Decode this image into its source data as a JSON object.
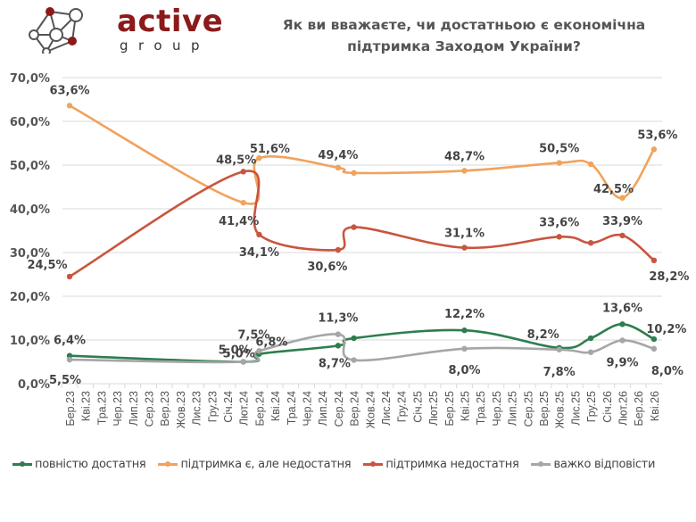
{
  "logo": {
    "word": "active",
    "sub": "group"
  },
  "title": {
    "line1": "Як ви вважаєте, чи достатньою є економічна",
    "line2": "підтримка Заходом України?"
  },
  "chart_data": {
    "type": "line",
    "title": "Як ви вважаєте, чи достатньою є економічна підтримка Заходом України?",
    "xlabel": "",
    "ylabel": "",
    "ylim": [
      0,
      70
    ],
    "y_ticks": [
      "0,0%",
      "10,0%",
      "20,0%",
      "30,0%",
      "40,0%",
      "50,0%",
      "60,0%",
      "70,0%"
    ],
    "grid": true,
    "legend_position": "bottom",
    "categories": [
      "Бер.23",
      "Кві.23",
      "Тра.23",
      "Чер.23",
      "Лип.23",
      "Сер.23",
      "Вер.23",
      "Жов.23",
      "Лис.23",
      "Гру.23",
      "Січ.24",
      "Лют.24",
      "Бер.24",
      "Кві.24",
      "Тра.24",
      "Чер.24",
      "Лип.24",
      "Сер.24",
      "Вер.24",
      "Жов.24",
      "Лис.24",
      "Гру.24",
      "Січ.25",
      "Лют.25",
      "Бер.25",
      "Кві.25",
      "Тра.25",
      "Чер.25",
      "Лип.25",
      "Сер.25",
      "Вер.25",
      "Жов.25",
      "Лис.25",
      "Гру.25",
      "Січ.26",
      "Лют.26",
      "Бер.26",
      "Кві.26"
    ],
    "point_categories": [
      "Бер.23",
      "Лют.24",
      "Бер.24",
      "Сер.24",
      "Вер.24",
      "Кві.25",
      "Жов.25",
      "Гру.25",
      "Лют.26",
      "Кві.26"
    ],
    "series": [
      {
        "name": "повністю достатня",
        "color": "#2e7d4f",
        "values": [
          6.4,
          5.0,
          6.8,
          8.7,
          10.4,
          12.2,
          8.2,
          10.4,
          13.6,
          10.2
        ],
        "labels": [
          "6,4%",
          "5,0%",
          "6,8%",
          "8,7%",
          "",
          "12,2%",
          "8,2%",
          "",
          "13,6%",
          "10,2%"
        ]
      },
      {
        "name": "підтримка є, але недостатня",
        "color": "#f0a35c",
        "values": [
          63.6,
          41.4,
          51.6,
          49.4,
          48.2,
          48.7,
          50.5,
          50.2,
          42.5,
          53.6
        ],
        "labels": [
          "63,6%",
          "41,4%",
          "51,6%",
          "49,4%",
          "",
          "48,7%",
          "50,5%",
          "",
          "42,5%",
          "53,6%"
        ]
      },
      {
        "name": "підтримка недостатня",
        "color": "#c9553f",
        "values": [
          24.5,
          48.5,
          34.1,
          30.6,
          35.8,
          31.1,
          33.6,
          32.2,
          33.9,
          28.2
        ],
        "labels": [
          "24,5%",
          "48,5%",
          "34,1%",
          "30,6%",
          "",
          "31,1%",
          "33,6%",
          "",
          "33,9%",
          "28,2%"
        ]
      },
      {
        "name": "важко відповісти",
        "color": "#a6a6a6",
        "values": [
          5.5,
          5.0,
          7.5,
          11.3,
          5.4,
          8.0,
          7.8,
          7.2,
          9.9,
          8.0
        ],
        "labels": [
          "5,5%",
          "5,0%",
          "7,5%",
          "11,3%",
          "",
          "8,0%",
          "7,8%",
          "",
          "9,9%",
          "8,0%"
        ]
      }
    ]
  }
}
